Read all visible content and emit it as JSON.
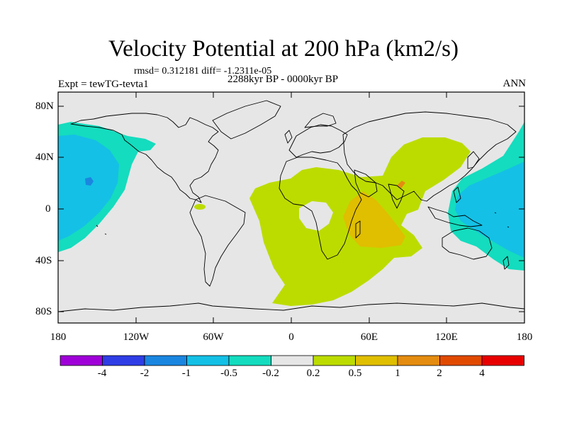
{
  "title": "Velocity Potential at 200 hPa (km2/s)",
  "stats": "rmsd= 0.312181 diff= -1.2311e-05",
  "experiment": "Expt = tewTG-tevta1",
  "period": "2288kyr BP - 0000kyr BP",
  "season": "ANN",
  "lat_labels": [
    "80N",
    "40N",
    "0",
    "40S",
    "80S"
  ],
  "lon_labels": [
    "180",
    "120W",
    "60W",
    "0",
    "60E",
    "120E",
    "180"
  ],
  "colorbar": {
    "colors": [
      "#a000d8",
      "#2f3de6",
      "#1a86e0",
      "#14c0e6",
      "#14dcbe",
      "#e6e6e6",
      "#bcdc00",
      "#e0be00",
      "#e48c10",
      "#e04a00",
      "#e80000"
    ],
    "labels": [
      "-4",
      "-2",
      "-1",
      "-0.5",
      "-0.2",
      "0.2",
      "0.5",
      "1",
      "2",
      "4"
    ]
  },
  "colors": {
    "background": "#e6e6e6",
    "neg_weak": "#14dcbe",
    "neg_mid": "#14c0e6",
    "neg_strong": "#1a86e0",
    "pos_weak": "#bcdc00",
    "pos_mid": "#e0be00",
    "pos_strong": "#e48c10"
  }
}
